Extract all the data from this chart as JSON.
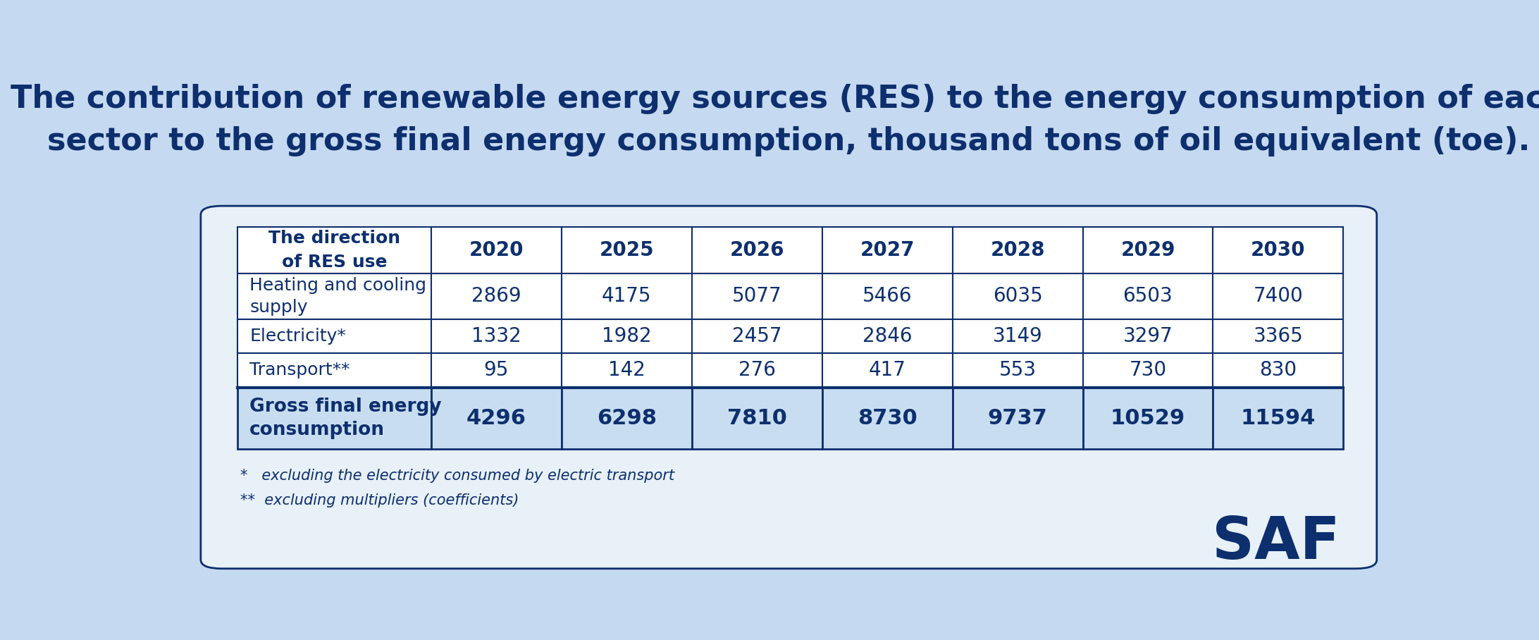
{
  "title_line1": "The contribution of renewable energy sources (RES) to the energy consumption of each",
  "title_line2": "sector to the gross final energy consumption, thousand tons of oil equivalent (toe).",
  "title_fontsize": 32,
  "title_color": "#0d2f6e",
  "bg_color": "#c5d9f0",
  "container_color": "#e8f0f8",
  "white_cell": "#ffffff",
  "blue_cell": "#c8ddf0",
  "header_row_label": "The direction\nof RES use",
  "years": [
    "2020",
    "2025",
    "2026",
    "2027",
    "2028",
    "2029",
    "2030"
  ],
  "rows": [
    {
      "label": "Heating and cooling\nsupply",
      "values": [
        "2869",
        "4175",
        "5077",
        "5466",
        "6035",
        "6503",
        "7400"
      ],
      "bold": false,
      "last": false
    },
    {
      "label": "Electricity*",
      "values": [
        "1332",
        "1982",
        "2457",
        "2846",
        "3149",
        "3297",
        "3365"
      ],
      "bold": false,
      "last": false
    },
    {
      "label": "Transport**",
      "values": [
        "95",
        "142",
        "276",
        "417",
        "553",
        "730",
        "830"
      ],
      "bold": false,
      "last": false
    },
    {
      "label": "Gross final energy\nconsumption",
      "values": [
        "4296",
        "6298",
        "7810",
        "8730",
        "9737",
        "10529",
        "11594"
      ],
      "bold": true,
      "last": true
    }
  ],
  "footnote1": "*   excluding the electricity consumed by electric transport",
  "footnote2": "**  excluding multipliers (coefficients)",
  "footnote_fontsize": 15,
  "footnote_color": "#0d2f6e",
  "saf_text": "SAF",
  "saf_color": "#0d2f6e",
  "saf_fontsize": 60,
  "line_color": "#0d2f6e",
  "cell_text_color": "#0d2f6e",
  "header_fontsize": 18,
  "data_fontsize": 20
}
